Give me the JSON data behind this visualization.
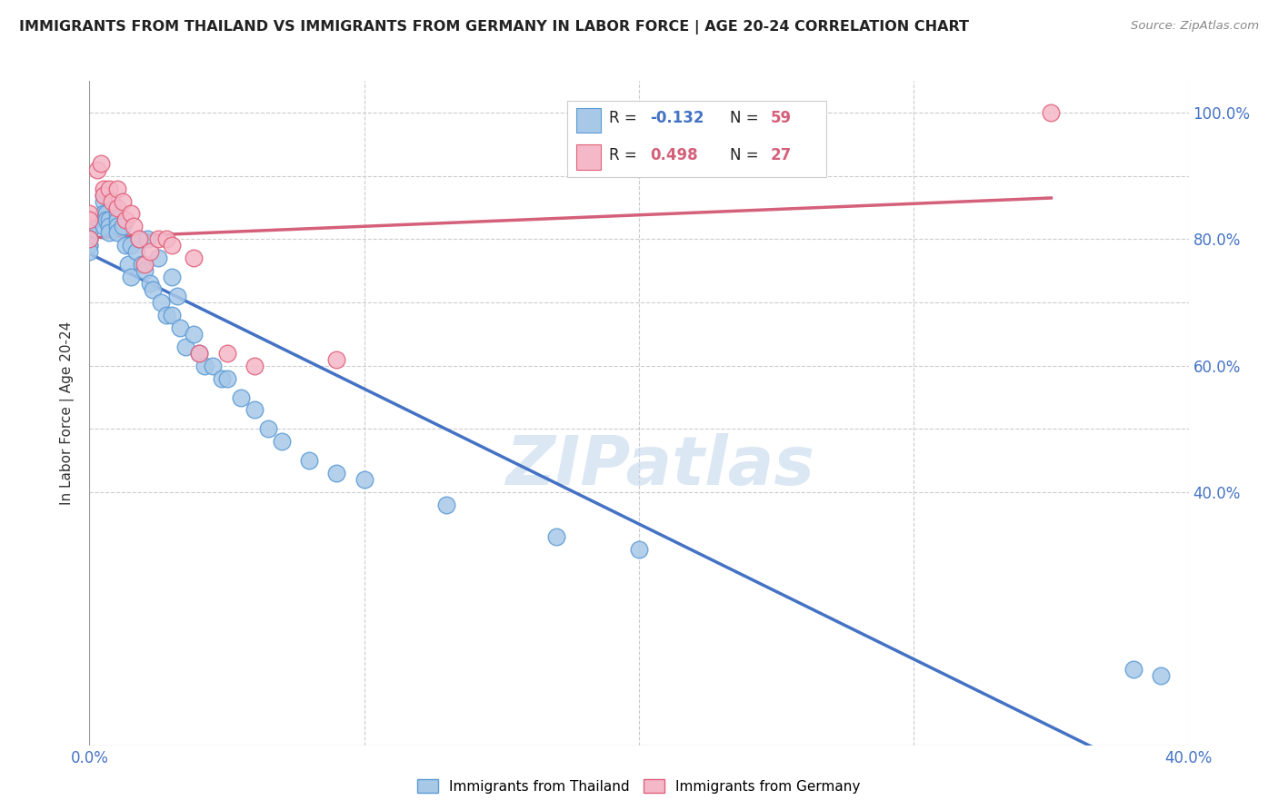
{
  "title": "IMMIGRANTS FROM THAILAND VS IMMIGRANTS FROM GERMANY IN LABOR FORCE | AGE 20-24 CORRELATION CHART",
  "source": "Source: ZipAtlas.com",
  "ylabel": "In Labor Force | Age 20-24",
  "xlim": [
    0.0,
    0.4
  ],
  "ylim": [
    0.0,
    1.05
  ],
  "ytick_vals": [
    0.0,
    0.4,
    0.5,
    0.6,
    0.7,
    0.8,
    0.9,
    1.0
  ],
  "ytick_labels_right": [
    "",
    "40.0%",
    "",
    "60.0%",
    "",
    "80.0%",
    "",
    "100.0%"
  ],
  "xtick_vals": [
    0.0,
    0.1,
    0.2,
    0.3,
    0.4
  ],
  "xtick_labels": [
    "0.0%",
    "",
    "",
    "",
    "40.0%"
  ],
  "R_thailand": -0.132,
  "N_thailand": 59,
  "R_germany": 0.498,
  "N_germany": 27,
  "thailand_fill": "#a8c8e8",
  "thailand_edge": "#5b9bd5",
  "germany_fill": "#f5b8c8",
  "germany_edge": "#e0607a",
  "trendline_thailand": "#4472c4",
  "trendline_germany": "#d4607a",
  "grid_color": "#cccccc",
  "bg_color": "#ffffff",
  "thailand_x": [
    0.0,
    0.0,
    0.0,
    0.0,
    0.0,
    0.0,
    0.0,
    0.005,
    0.005,
    0.005,
    0.005,
    0.005,
    0.006,
    0.006,
    0.007,
    0.007,
    0.007,
    0.01,
    0.01,
    0.01,
    0.01,
    0.012,
    0.013,
    0.014,
    0.015,
    0.015,
    0.017,
    0.018,
    0.019,
    0.02,
    0.021,
    0.022,
    0.023,
    0.025,
    0.026,
    0.028,
    0.03,
    0.03,
    0.032,
    0.033,
    0.035,
    0.038,
    0.04,
    0.042,
    0.045,
    0.048,
    0.05,
    0.055,
    0.06,
    0.065,
    0.07,
    0.08,
    0.09,
    0.1,
    0.13,
    0.17,
    0.2,
    0.38,
    0.39
  ],
  "thailand_y": [
    0.82,
    0.81,
    0.8,
    0.8,
    0.79,
    0.79,
    0.78,
    0.87,
    0.86,
    0.84,
    0.83,
    0.82,
    0.84,
    0.83,
    0.83,
    0.82,
    0.81,
    0.84,
    0.83,
    0.82,
    0.81,
    0.82,
    0.79,
    0.76,
    0.79,
    0.74,
    0.78,
    0.8,
    0.76,
    0.75,
    0.8,
    0.73,
    0.72,
    0.77,
    0.7,
    0.68,
    0.74,
    0.68,
    0.71,
    0.66,
    0.63,
    0.65,
    0.62,
    0.6,
    0.6,
    0.58,
    0.58,
    0.55,
    0.53,
    0.5,
    0.48,
    0.45,
    0.43,
    0.42,
    0.38,
    0.33,
    0.31,
    0.12,
    0.11
  ],
  "germany_x": [
    0.0,
    0.0,
    0.0,
    0.003,
    0.004,
    0.005,
    0.005,
    0.007,
    0.008,
    0.01,
    0.01,
    0.012,
    0.013,
    0.015,
    0.016,
    0.018,
    0.02,
    0.022,
    0.025,
    0.028,
    0.03,
    0.038,
    0.04,
    0.05,
    0.06,
    0.09,
    0.35
  ],
  "germany_y": [
    0.84,
    0.83,
    0.8,
    0.91,
    0.92,
    0.88,
    0.87,
    0.88,
    0.86,
    0.88,
    0.85,
    0.86,
    0.83,
    0.84,
    0.82,
    0.8,
    0.76,
    0.78,
    0.8,
    0.8,
    0.79,
    0.77,
    0.62,
    0.62,
    0.6,
    0.61,
    1.0
  ]
}
